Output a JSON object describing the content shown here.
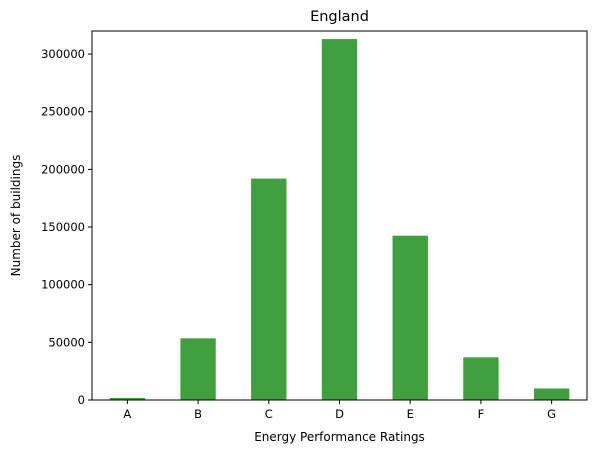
{
  "chart_data": {
    "type": "bar",
    "title": "England",
    "xlabel": "Energy Performance Ratings",
    "ylabel": "Number of buildings",
    "categories": [
      "A",
      "B",
      "C",
      "D",
      "E",
      "F",
      "G"
    ],
    "values": [
      1800,
      53500,
      192000,
      313000,
      142500,
      37000,
      10000
    ],
    "ylim": [
      0,
      320000
    ],
    "yticks": [
      0,
      50000,
      100000,
      150000,
      200000,
      250000,
      300000
    ],
    "ytick_labels": [
      "0",
      "50000",
      "100000",
      "150000",
      "200000",
      "250000",
      "300000"
    ],
    "bar_color": "#40a040",
    "grid": false,
    "legend": "none"
  }
}
